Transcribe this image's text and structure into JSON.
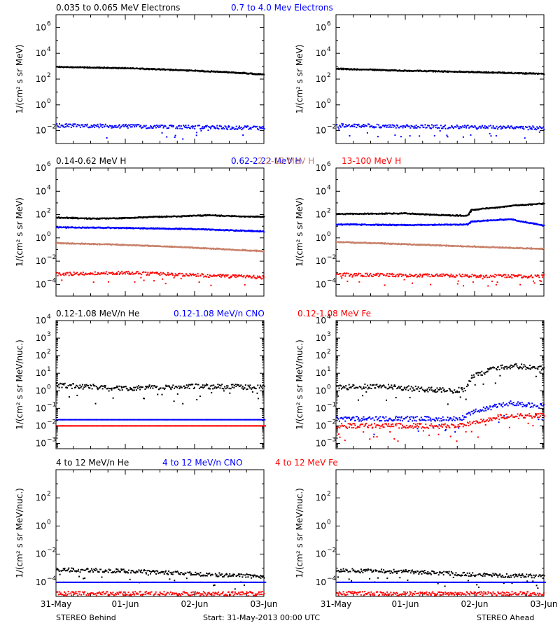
{
  "colors": {
    "black": "#000000",
    "blue": "#0000ff",
    "tan": "#c8806a",
    "red": "#ff0000"
  },
  "footer": {
    "left": "STEREO Behind",
    "center": "Start: 31-May-2013 00:00 UTC",
    "right": "STEREO Ahead"
  },
  "x_ticks": [
    "31-May",
    "01-Jun",
    "02-Jun",
    "03-Jun"
  ],
  "chart_data": [
    {
      "type": "scatter",
      "row": 0,
      "spacecraft": "STEREO Behind",
      "ylabel": "1/(cm² s sr MeV)",
      "yscale": "log",
      "ylim_exp": [
        -3,
        7
      ],
      "ytick_exps": [
        -2,
        0,
        2,
        4,
        6
      ],
      "xlim_days": [
        0,
        3
      ],
      "headers": [
        {
          "text": "0.035 to 0.065 MeV Electrons",
          "color": "#000000"
        },
        {
          "text": "0.7 to 4.0 Mev Electrons",
          "color": "#0000ff"
        }
      ],
      "series": [
        {
          "name": "0.035 to 0.065 MeV Electrons",
          "color": "#000000",
          "style": "line",
          "points": [
            [
              0,
              2.95
            ],
            [
              1,
              2.85
            ],
            [
              2,
              2.65
            ],
            [
              2.6,
              2.5
            ],
            [
              3,
              2.35
            ]
          ]
        },
        {
          "name": "0.7 to 4.0 Mev Electrons",
          "color": "#0000ff",
          "style": "scatter",
          "points": [
            [
              0,
              -1.6
            ],
            [
              1.5,
              -1.7
            ],
            [
              3,
              -1.8
            ]
          ]
        }
      ]
    },
    {
      "type": "scatter",
      "row": 0,
      "spacecraft": "STEREO Ahead",
      "ylabel": "1/(cm² s sr MeV)",
      "yscale": "log",
      "ylim_exp": [
        -3,
        7
      ],
      "ytick_exps": [
        -2,
        0,
        2,
        4,
        6
      ],
      "xlim_days": [
        0,
        3
      ],
      "series": [
        {
          "name": "0.035 to 0.065 MeV Electrons",
          "color": "#000000",
          "style": "line",
          "points": [
            [
              0,
              2.8
            ],
            [
              1,
              2.65
            ],
            [
              2,
              2.55
            ],
            [
              3,
              2.4
            ]
          ]
        },
        {
          "name": "0.7 to 4.0 Mev Electrons",
          "color": "#0000ff",
          "style": "scatter",
          "points": [
            [
              0,
              -1.6
            ],
            [
              1.5,
              -1.7
            ],
            [
              3,
              -1.8
            ]
          ]
        }
      ]
    },
    {
      "type": "scatter",
      "row": 1,
      "spacecraft": "STEREO Behind",
      "ylabel": "1/(cm² s sr MeV)",
      "yscale": "log",
      "ylim_exp": [
        -5,
        6
      ],
      "ytick_exps": [
        -4,
        -2,
        0,
        2,
        4,
        6
      ],
      "xlim_days": [
        0,
        3
      ],
      "headers": [
        {
          "text": "0.14-0.62 MeV H",
          "color": "#000000"
        },
        {
          "text": "0.62-2.22 MeV H",
          "color": "#0000ff"
        },
        {
          "text": "2.2-12 MeV H",
          "color": "#c8806a"
        },
        {
          "text": "13-100 MeV H",
          "color": "#ff0000"
        }
      ],
      "series": [
        {
          "name": "0.14-0.62 MeV H",
          "color": "#000000",
          "style": "line",
          "points": [
            [
              0,
              1.75
            ],
            [
              0.5,
              1.65
            ],
            [
              1,
              1.7
            ],
            [
              1.4,
              1.8
            ],
            [
              1.8,
              1.85
            ],
            [
              2.2,
              1.95
            ],
            [
              2.6,
              1.85
            ],
            [
              3,
              1.8
            ]
          ]
        },
        {
          "name": "0.62-2.22 MeV H",
          "color": "#0000ff",
          "style": "line",
          "points": [
            [
              0,
              0.9
            ],
            [
              1,
              0.85
            ],
            [
              2,
              0.75
            ],
            [
              3,
              0.55
            ]
          ]
        },
        {
          "name": "2.2-12 MeV H",
          "color": "#c8806a",
          "style": "line",
          "points": [
            [
              0,
              -0.45
            ],
            [
              1,
              -0.6
            ],
            [
              2,
              -0.85
            ],
            [
              3,
              -1.15
            ]
          ]
        },
        {
          "name": "13-100 MeV H",
          "color": "#ff0000",
          "style": "scatter",
          "points": [
            [
              0,
              -3.1
            ],
            [
              1,
              -3.0
            ],
            [
              2,
              -3.2
            ],
            [
              3,
              -3.4
            ]
          ]
        }
      ]
    },
    {
      "type": "scatter",
      "row": 1,
      "spacecraft": "STEREO Ahead",
      "ylabel": "1/(cm² s sr MeV)",
      "yscale": "log",
      "ylim_exp": [
        -5,
        6
      ],
      "ytick_exps": [
        -4,
        -2,
        0,
        2,
        4,
        6
      ],
      "xlim_days": [
        0,
        3
      ],
      "series": [
        {
          "name": "0.14-0.62 MeV H",
          "color": "#000000",
          "style": "line",
          "points": [
            [
              0,
              2.05
            ],
            [
              1,
              2.1
            ],
            [
              1.5,
              1.95
            ],
            [
              1.9,
              1.9
            ],
            [
              1.95,
              2.4
            ],
            [
              2.3,
              2.6
            ],
            [
              2.6,
              2.8
            ],
            [
              3,
              2.95
            ]
          ]
        },
        {
          "name": "0.62-2.22 MeV H",
          "color": "#0000ff",
          "style": "line",
          "points": [
            [
              0,
              1.15
            ],
            [
              1,
              1.1
            ],
            [
              1.9,
              1.15
            ],
            [
              1.95,
              1.4
            ],
            [
              2.5,
              1.6
            ],
            [
              3,
              1.05
            ]
          ]
        },
        {
          "name": "2.2-12 MeV H",
          "color": "#c8806a",
          "style": "line",
          "points": [
            [
              0,
              -0.35
            ],
            [
              1,
              -0.55
            ],
            [
              2,
              -0.75
            ],
            [
              3,
              -0.95
            ]
          ]
        },
        {
          "name": "13-100 MeV H",
          "color": "#ff0000",
          "style": "scatter",
          "points": [
            [
              0,
              -3.15
            ],
            [
              1.5,
              -3.25
            ],
            [
              3,
              -3.3
            ]
          ]
        }
      ]
    },
    {
      "type": "scatter",
      "row": 2,
      "spacecraft": "STEREO Behind",
      "ylabel": "1/(cm² s sr MeV/nuc.)",
      "yscale": "log",
      "ylim_exp": [
        -3.3,
        4
      ],
      "ytick_exps": [
        -3,
        -2,
        -1,
        0,
        1,
        2,
        3,
        4
      ],
      "xlim_days": [
        0,
        3
      ],
      "headers": [
        {
          "text": "0.12-1.08 MeV/n He",
          "color": "#000000"
        },
        {
          "text": "0.12-1.08 MeV/n CNO",
          "color": "#0000ff"
        },
        {
          "text": "0.12-1.08 MeV Fe",
          "color": "#ff0000"
        }
      ],
      "series": [
        {
          "name": "0.12-1.08 MeV/n He",
          "color": "#000000",
          "style": "scatter",
          "points": [
            [
              0,
              0.3
            ],
            [
              1,
              0.15
            ],
            [
              2,
              0.25
            ],
            [
              3,
              0.2
            ]
          ]
        },
        {
          "name": "0.12-1.08 MeV/n CNO",
          "color": "#0000ff",
          "style": "dashes",
          "points": [
            [
              0,
              -1.65
            ],
            [
              3,
              -1.65
            ]
          ]
        },
        {
          "name": "0.12-1.08 MeV Fe",
          "color": "#ff0000",
          "style": "dashes",
          "points": [
            [
              0,
              -2.0
            ],
            [
              3,
              -2.0
            ]
          ]
        }
      ]
    },
    {
      "type": "scatter",
      "row": 2,
      "spacecraft": "STEREO Ahead",
      "ylabel": "1/(cm² s sr MeV/nuc.)",
      "yscale": "log",
      "ylim_exp": [
        -3.3,
        4
      ],
      "ytick_exps": [
        -3,
        -2,
        -1,
        0,
        1,
        2,
        3,
        4
      ],
      "xlim_days": [
        0,
        3
      ],
      "series": [
        {
          "name": "0.12-1.08 MeV/n He",
          "color": "#000000",
          "style": "scatter",
          "points": [
            [
              0,
              0.2
            ],
            [
              0.6,
              0.25
            ],
            [
              1.2,
              0.1
            ],
            [
              1.7,
              0.0
            ],
            [
              1.85,
              0.1
            ],
            [
              1.95,
              0.8
            ],
            [
              2.3,
              1.3
            ],
            [
              2.6,
              1.4
            ],
            [
              3,
              1.3
            ]
          ]
        },
        {
          "name": "0.12-1.08 MeV/n CNO",
          "color": "#0000ff",
          "style": "scatter",
          "points": [
            [
              0,
              -1.6
            ],
            [
              1.8,
              -1.6
            ],
            [
              1.95,
              -1.2
            ],
            [
              2.5,
              -0.7
            ],
            [
              3,
              -0.9
            ]
          ]
        },
        {
          "name": "0.12-1.08 MeV Fe",
          "color": "#ff0000",
          "style": "scatter",
          "points": [
            [
              0,
              -2.0
            ],
            [
              1.8,
              -2.0
            ],
            [
              2.3,
              -1.5
            ],
            [
              3,
              -1.4
            ]
          ]
        }
      ]
    },
    {
      "type": "scatter",
      "row": 3,
      "spacecraft": "STEREO Behind",
      "ylabel": "1/(cm² s sr MeV/nuc.)",
      "yscale": "log",
      "ylim_exp": [
        -5,
        4
      ],
      "ytick_exps": [
        -4,
        -2,
        0,
        2
      ],
      "xlim_days": [
        0,
        3
      ],
      "headers": [
        {
          "text": "4 to 12 MeV/n He",
          "color": "#000000"
        },
        {
          "text": "4 to 12 MeV/n CNO",
          "color": "#0000ff"
        },
        {
          "text": "4 to 12 MeV Fe",
          "color": "#ff0000"
        }
      ],
      "series": [
        {
          "name": "4 to 12 MeV/n He",
          "color": "#000000",
          "style": "scatter",
          "points": [
            [
              0,
              -3.1
            ],
            [
              1,
              -3.2
            ],
            [
              2,
              -3.4
            ],
            [
              3,
              -3.6
            ]
          ]
        },
        {
          "name": "4 to 12 MeV/n CNO",
          "color": "#0000ff",
          "style": "dashes",
          "points": [
            [
              0,
              -4.0
            ],
            [
              3,
              -4.0
            ]
          ]
        },
        {
          "name": "4 to 12 MeV Fe",
          "color": "#ff0000",
          "style": "scatter",
          "points": [
            [
              0,
              -4.8
            ],
            [
              3,
              -4.8
            ]
          ]
        }
      ]
    },
    {
      "type": "scatter",
      "row": 3,
      "spacecraft": "STEREO Ahead",
      "ylabel": "1/(cm² s sr MeV/nuc.)",
      "yscale": "log",
      "ylim_exp": [
        -5,
        4
      ],
      "ytick_exps": [
        -4,
        -2,
        0,
        2
      ],
      "xlim_days": [
        0,
        3
      ],
      "series": [
        {
          "name": "4 to 12 MeV/n He",
          "color": "#000000",
          "style": "scatter",
          "points": [
            [
              0,
              -3.15
            ],
            [
              1,
              -3.25
            ],
            [
              2,
              -3.45
            ],
            [
              3,
              -3.6
            ]
          ]
        },
        {
          "name": "4 to 12 MeV/n CNO",
          "color": "#0000ff",
          "style": "dashes",
          "points": [
            [
              0,
              -4.0
            ],
            [
              3,
              -4.0
            ]
          ]
        },
        {
          "name": "4 to 12 MeV Fe",
          "color": "#ff0000",
          "style": "scatter",
          "points": [
            [
              0,
              -4.8
            ],
            [
              3,
              -4.8
            ]
          ]
        }
      ]
    }
  ]
}
